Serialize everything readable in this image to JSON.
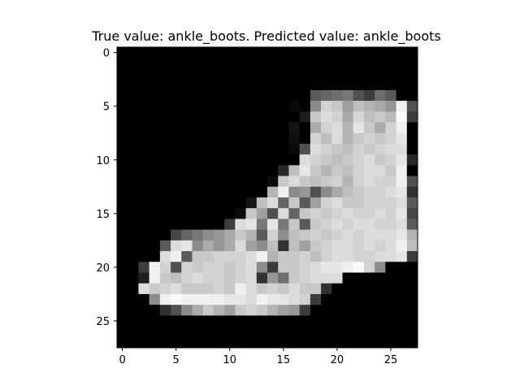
{
  "chart_data": {
    "type": "heatmap",
    "title": "True value: ankle_boots. Predicted value: ankle_boots",
    "xlabel": "",
    "ylabel": "",
    "xlim": [
      -0.5,
      27.5
    ],
    "ylim": [
      27.5,
      -0.5
    ],
    "xticks": [
      0,
      5,
      10,
      15,
      20,
      25
    ],
    "yticks": [
      0,
      5,
      10,
      15,
      20,
      25
    ],
    "colormap": "gray",
    "value_range": [
      0,
      255
    ],
    "grid": false,
    "rows": 28,
    "cols": 28,
    "values": [
      [
        0,
        0,
        0,
        0,
        0,
        0,
        0,
        0,
        0,
        0,
        0,
        0,
        0,
        0,
        0,
        0,
        0,
        0,
        0,
        0,
        0,
        0,
        0,
        0,
        0,
        0,
        0,
        0
      ],
      [
        0,
        0,
        0,
        0,
        0,
        0,
        0,
        0,
        0,
        0,
        0,
        0,
        0,
        0,
        0,
        0,
        0,
        0,
        0,
        0,
        0,
        0,
        0,
        0,
        0,
        0,
        0,
        0
      ],
      [
        0,
        0,
        0,
        0,
        0,
        0,
        0,
        0,
        0,
        0,
        0,
        0,
        0,
        0,
        0,
        0,
        0,
        0,
        0,
        0,
        0,
        0,
        0,
        0,
        0,
        0,
        0,
        0
      ],
      [
        0,
        0,
        0,
        0,
        0,
        0,
        0,
        0,
        0,
        0,
        0,
        0,
        0,
        0,
        0,
        0,
        0,
        0,
        0,
        0,
        0,
        0,
        0,
        0,
        0,
        0,
        0,
        0
      ],
      [
        0,
        0,
        0,
        0,
        0,
        0,
        0,
        0,
        0,
        0,
        0,
        0,
        0,
        0,
        0,
        0,
        0,
        0,
        90,
        100,
        110,
        120,
        80,
        60,
        110,
        90,
        0,
        0
      ],
      [
        0,
        0,
        0,
        0,
        0,
        0,
        0,
        0,
        0,
        0,
        0,
        0,
        0,
        0,
        0,
        0,
        10,
        0,
        140,
        210,
        200,
        160,
        190,
        180,
        170,
        150,
        240,
        80
      ],
      [
        0,
        0,
        0,
        0,
        0,
        0,
        0,
        0,
        0,
        0,
        0,
        0,
        0,
        0,
        0,
        0,
        0,
        30,
        200,
        220,
        210,
        170,
        215,
        190,
        200,
        185,
        250,
        60
      ],
      [
        0,
        0,
        0,
        0,
        0,
        0,
        0,
        0,
        0,
        0,
        0,
        0,
        0,
        0,
        0,
        0,
        20,
        0,
        170,
        210,
        220,
        180,
        230,
        200,
        170,
        210,
        240,
        0
      ],
      [
        0,
        0,
        0,
        0,
        0,
        0,
        0,
        0,
        0,
        0,
        0,
        0,
        0,
        0,
        0,
        0,
        15,
        0,
        210,
        190,
        220,
        180,
        200,
        210,
        200,
        210,
        230,
        0
      ],
      [
        0,
        0,
        0,
        0,
        0,
        0,
        0,
        0,
        0,
        0,
        0,
        0,
        0,
        0,
        0,
        0,
        10,
        80,
        220,
        210,
        200,
        190,
        210,
        200,
        210,
        220,
        220,
        0
      ],
      [
        0,
        0,
        0,
        0,
        0,
        0,
        0,
        0,
        0,
        0,
        0,
        0,
        0,
        0,
        0,
        0,
        0,
        220,
        210,
        200,
        190,
        200,
        210,
        220,
        200,
        210,
        230,
        40
      ],
      [
        0,
        0,
        0,
        0,
        0,
        0,
        0,
        0,
        0,
        0,
        0,
        0,
        0,
        0,
        0,
        40,
        190,
        230,
        200,
        180,
        200,
        190,
        210,
        220,
        220,
        200,
        240,
        0
      ],
      [
        0,
        0,
        0,
        0,
        0,
        0,
        0,
        0,
        0,
        0,
        0,
        0,
        0,
        0,
        10,
        200,
        220,
        200,
        190,
        200,
        210,
        180,
        210,
        220,
        210,
        210,
        240,
        80
      ],
      [
        0,
        0,
        0,
        0,
        0,
        0,
        0,
        0,
        0,
        0,
        0,
        0,
        0,
        0,
        180,
        240,
        140,
        150,
        80,
        140,
        170,
        190,
        200,
        210,
        210,
        220,
        230,
        50
      ],
      [
        0,
        0,
        0,
        0,
        0,
        0,
        0,
        0,
        0,
        0,
        0,
        0,
        20,
        190,
        220,
        100,
        200,
        90,
        160,
        210,
        220,
        200,
        200,
        210,
        210,
        210,
        220,
        90
      ],
      [
        0,
        0,
        0,
        0,
        0,
        0,
        0,
        0,
        0,
        0,
        0,
        10,
        200,
        160,
        80,
        220,
        100,
        200,
        210,
        200,
        210,
        220,
        210,
        210,
        220,
        210,
        230,
        70
      ],
      [
        0,
        0,
        0,
        0,
        0,
        0,
        0,
        0,
        0,
        0,
        60,
        220,
        230,
        120,
        230,
        120,
        200,
        90,
        200,
        210,
        220,
        210,
        220,
        220,
        210,
        210,
        220,
        90
      ],
      [
        0,
        0,
        0,
        0,
        0,
        70,
        100,
        120,
        140,
        150,
        170,
        200,
        180,
        90,
        210,
        140,
        190,
        200,
        210,
        200,
        210,
        220,
        210,
        220,
        220,
        220,
        230,
        180
      ],
      [
        0,
        0,
        0,
        0,
        90,
        220,
        230,
        140,
        170,
        150,
        170,
        220,
        160,
        140,
        190,
        50,
        190,
        160,
        200,
        210,
        220,
        220,
        210,
        220,
        210,
        220,
        240,
        190
      ],
      [
        0,
        0,
        0,
        0,
        220,
        240,
        90,
        200,
        200,
        210,
        210,
        210,
        220,
        240,
        180,
        200,
        200,
        210,
        190,
        210,
        220,
        220,
        210,
        210,
        220,
        220,
        230,
        60
      ],
      [
        0,
        0,
        60,
        240,
        210,
        80,
        210,
        200,
        210,
        210,
        200,
        210,
        220,
        140,
        60,
        200,
        200,
        210,
        220,
        230,
        230,
        240,
        250,
        210,
        140,
        0,
        0,
        0
      ],
      [
        0,
        0,
        30,
        240,
        200,
        190,
        210,
        220,
        210,
        210,
        200,
        210,
        220,
        50,
        150,
        110,
        200,
        210,
        220,
        220,
        220,
        0,
        0,
        0,
        0,
        0,
        0,
        0
      ],
      [
        0,
        0,
        220,
        200,
        210,
        220,
        200,
        200,
        200,
        210,
        200,
        240,
        220,
        200,
        210,
        200,
        220,
        200,
        200,
        50,
        0,
        0,
        0,
        0,
        0,
        0,
        0,
        0
      ],
      [
        0,
        0,
        0,
        140,
        240,
        250,
        240,
        240,
        240,
        240,
        230,
        230,
        220,
        240,
        230,
        230,
        220,
        210,
        60,
        0,
        0,
        0,
        0,
        0,
        0,
        0,
        0,
        0
      ],
      [
        0,
        0,
        0,
        0,
        50,
        80,
        140,
        170,
        200,
        180,
        160,
        200,
        210,
        200,
        180,
        160,
        150,
        60,
        0,
        0,
        0,
        0,
        0,
        0,
        0,
        0,
        0,
        0
      ],
      [
        0,
        0,
        0,
        0,
        0,
        0,
        0,
        0,
        0,
        0,
        0,
        0,
        0,
        0,
        0,
        0,
        0,
        0,
        0,
        0,
        0,
        0,
        0,
        0,
        0,
        0,
        0,
        0
      ],
      [
        0,
        0,
        0,
        0,
        0,
        0,
        0,
        0,
        0,
        0,
        0,
        0,
        0,
        0,
        0,
        0,
        0,
        0,
        0,
        0,
        0,
        0,
        0,
        0,
        0,
        0,
        0,
        0
      ],
      [
        0,
        0,
        0,
        0,
        0,
        0,
        0,
        0,
        0,
        0,
        0,
        0,
        0,
        0,
        0,
        0,
        0,
        0,
        0,
        0,
        0,
        0,
        0,
        0,
        0,
        0,
        0,
        0
      ]
    ]
  }
}
